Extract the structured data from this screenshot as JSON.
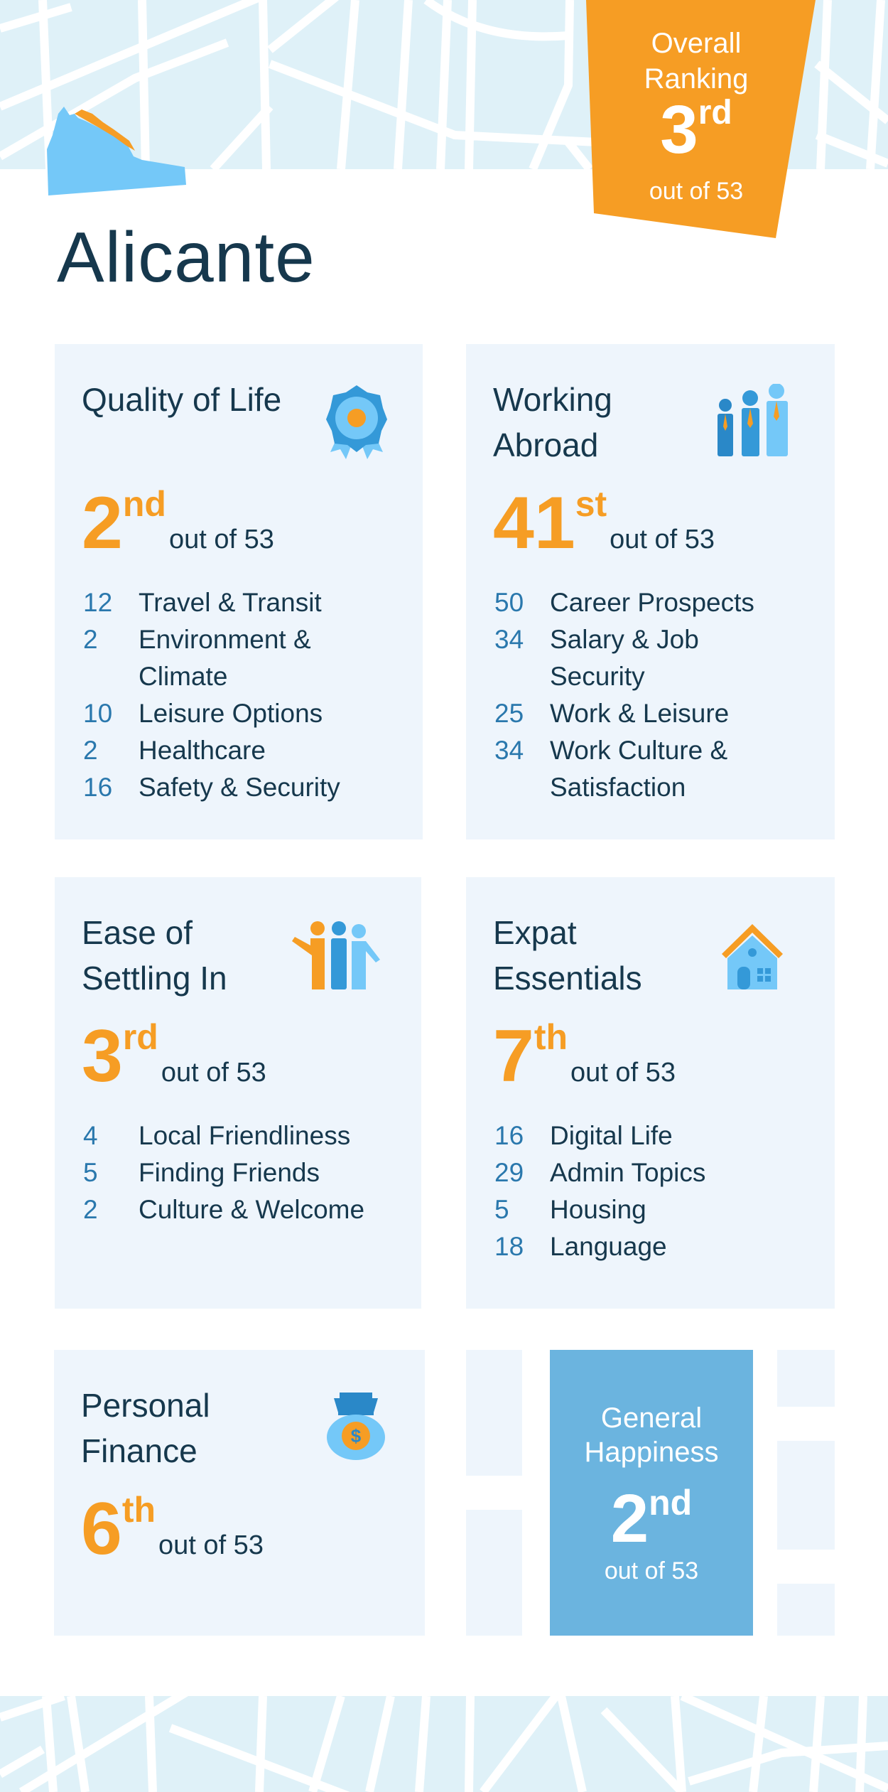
{
  "city": "Alicante",
  "overall": {
    "label_line1": "Overall",
    "label_line2": "Ranking",
    "rank": "3",
    "suffix": "rd",
    "out_of": "out of 53"
  },
  "cards": [
    {
      "title": "Quality of Life",
      "icon": "award-rosette-icon",
      "rank": "2",
      "suffix": "nd",
      "out_of": "out of 53",
      "items": [
        {
          "rank": "12",
          "label": "Travel & Transit"
        },
        {
          "rank": "2",
          "label": "Environment & Climate"
        },
        {
          "rank": "10",
          "label": "Leisure Options"
        },
        {
          "rank": "2",
          "label": "Healthcare"
        },
        {
          "rank": "16",
          "label": "Safety & Security"
        }
      ]
    },
    {
      "title": "Working Abroad",
      "icon": "business-people-icon",
      "rank": "41",
      "suffix": "st",
      "out_of": "out of 53",
      "items": [
        {
          "rank": "50",
          "label": "Career Prospects"
        },
        {
          "rank": "34",
          "label": "Salary & Job Security"
        },
        {
          "rank": "25",
          "label": "Work & Leisure"
        },
        {
          "rank": "34",
          "label": "Work Culture & Satisfaction"
        }
      ]
    },
    {
      "title": "Ease of Settling In",
      "icon": "friends-group-icon",
      "rank": "3",
      "suffix": "rd",
      "out_of": "out of 53",
      "items": [
        {
          "rank": "4",
          "label": "Local Friendliness"
        },
        {
          "rank": "5",
          "label": "Finding Friends"
        },
        {
          "rank": "2",
          "label": "Culture & Welcome"
        }
      ]
    },
    {
      "title": "Expat Essentials",
      "icon": "house-icon",
      "rank": "7",
      "suffix": "th",
      "out_of": "out of 53",
      "items": [
        {
          "rank": "16",
          "label": "Digital Life"
        },
        {
          "rank": "29",
          "label": "Admin Topics"
        },
        {
          "rank": "5",
          "label": "Housing"
        },
        {
          "rank": "18",
          "label": "Language"
        }
      ]
    },
    {
      "title": "Personal Finance",
      "icon": "money-bag-icon",
      "rank": "6",
      "suffix": "th",
      "out_of": "out of 53",
      "items": []
    }
  ],
  "general_happiness": {
    "label_line1": "General",
    "label_line2": "Happiness",
    "rank": "2",
    "suffix": "nd",
    "out_of": "out of 53"
  },
  "colors": {
    "orange": "#f69d24",
    "dark": "#16384d",
    "blue": "#2a78ad",
    "card": "#eef5fc",
    "happiness": "#6bb4df",
    "map": "#dff1f8"
  }
}
